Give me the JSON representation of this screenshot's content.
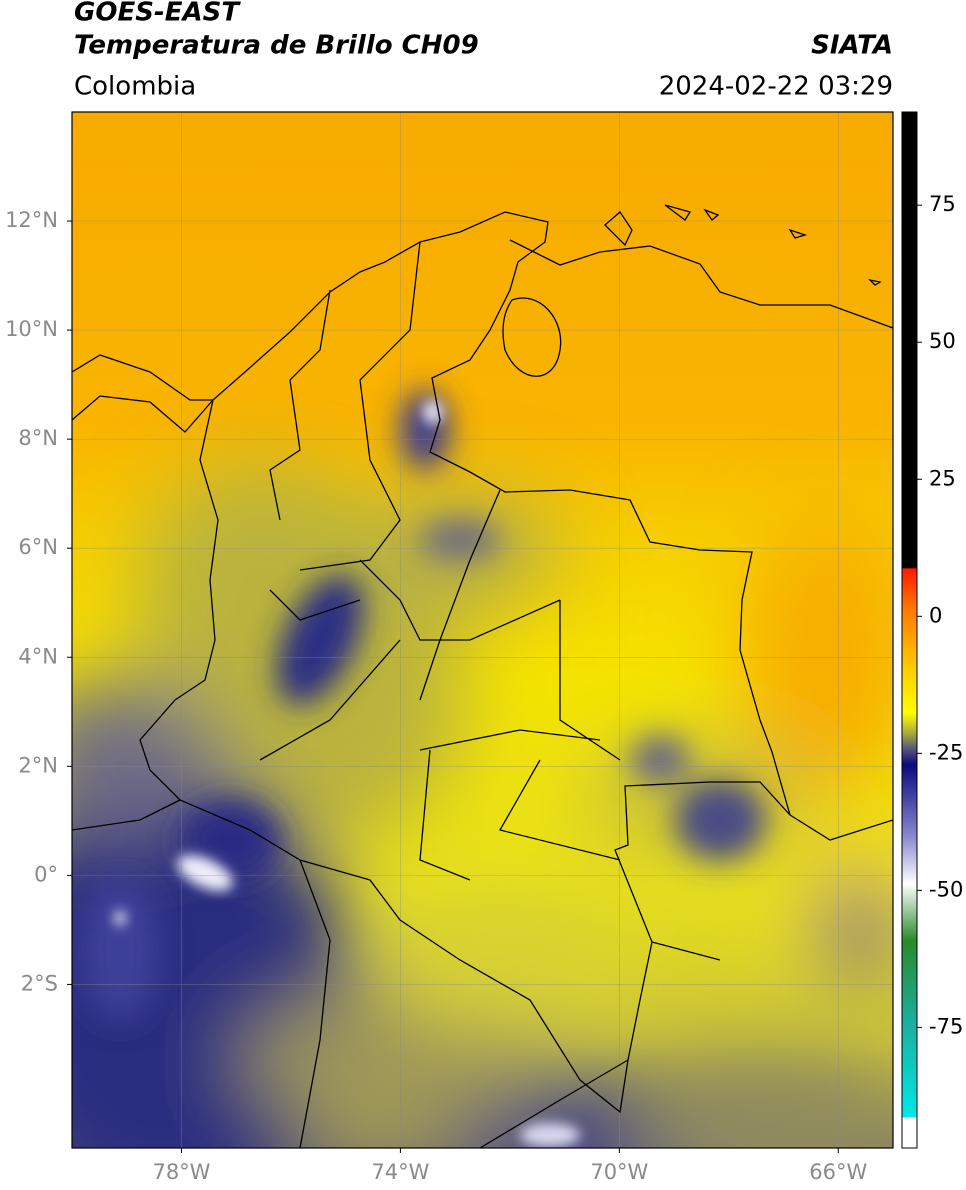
{
  "header": {
    "title_line1": "GOES-EAST",
    "title_line2": "Temperatura de Brillo CH09",
    "source": "SIATA",
    "region": "Colombia",
    "timestamp": "2024-02-22 03:29"
  },
  "map": {
    "lonlim": [
      -80,
      -65
    ],
    "latlim": [
      -5,
      14
    ],
    "lon_ticks": [
      {
        "value": -78,
        "label": "78°W"
      },
      {
        "value": -74,
        "label": "74°W"
      },
      {
        "value": -70,
        "label": "70°W"
      },
      {
        "value": -66,
        "label": "66°W"
      }
    ],
    "lat_ticks": [
      {
        "value": 12,
        "label": "12°N"
      },
      {
        "value": 10,
        "label": "10°N"
      },
      {
        "value": 8,
        "label": "8°N"
      },
      {
        "value": 6,
        "label": "6°N"
      },
      {
        "value": 4,
        "label": "4°N"
      },
      {
        "value": 2,
        "label": "2°N"
      },
      {
        "value": 0,
        "label": "0°"
      },
      {
        "value": -2,
        "label": "2°S"
      }
    ],
    "grid": true
  },
  "colorbar": {
    "range": [
      -97,
      92
    ],
    "ticks": [
      75,
      50,
      25,
      0,
      -25,
      -50,
      -75
    ]
  }
}
